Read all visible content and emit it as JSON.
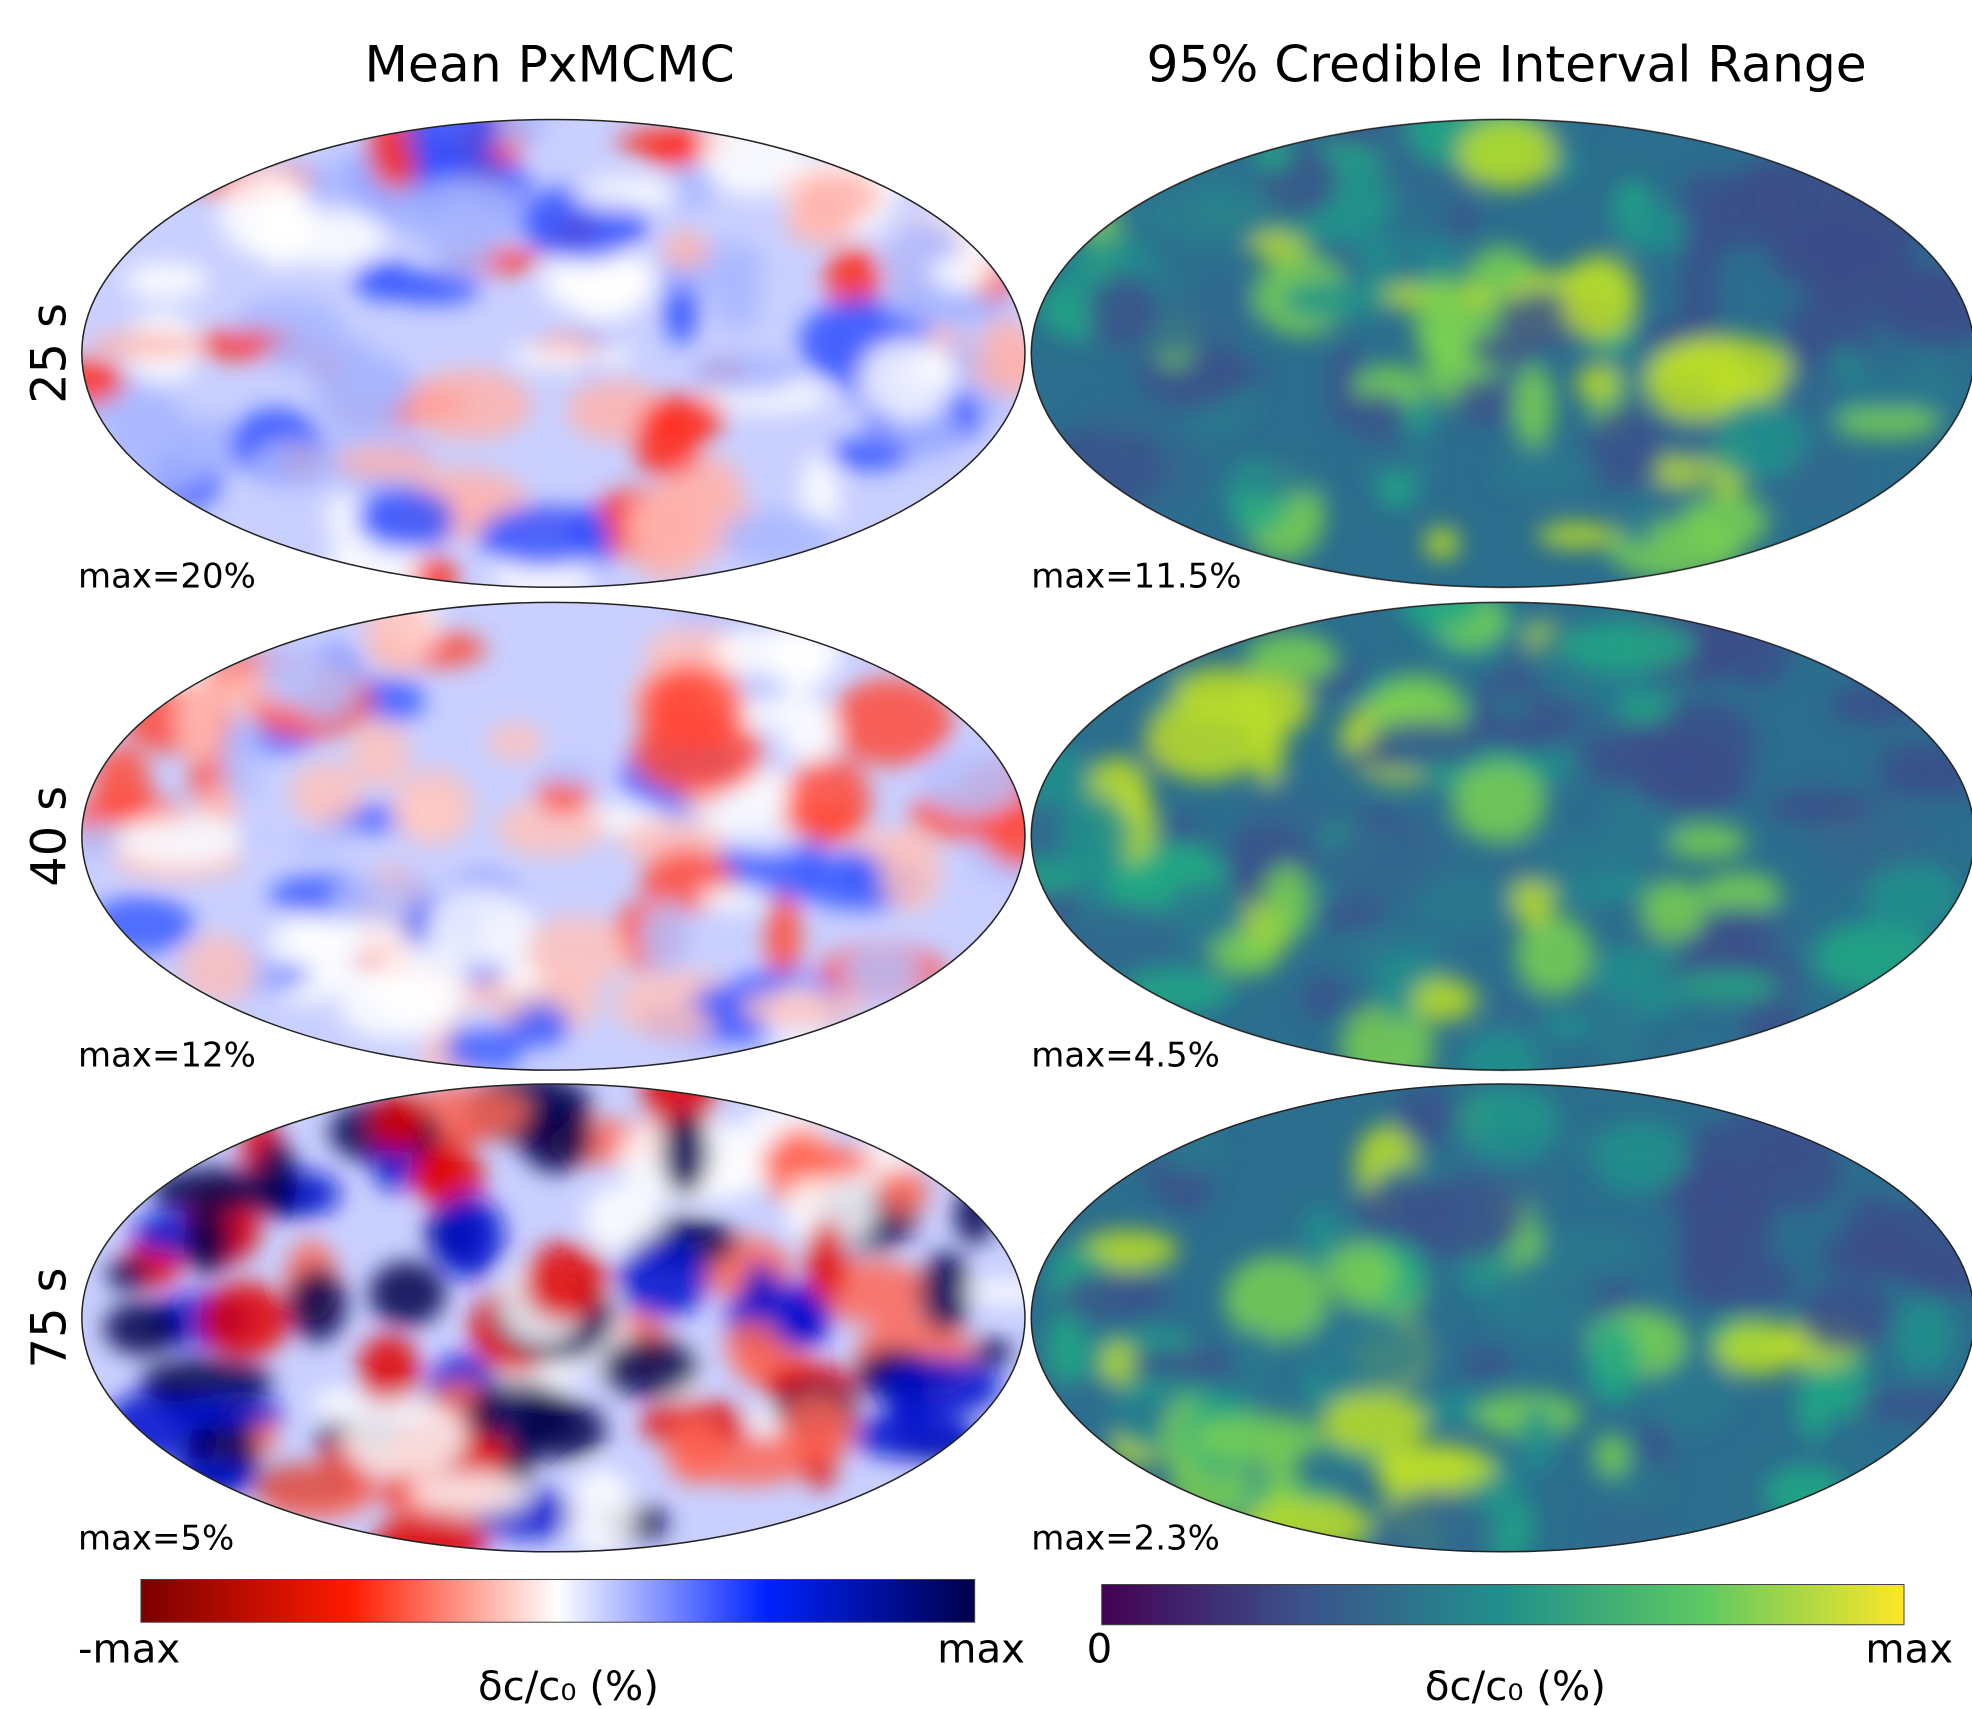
{
  "columns": [
    {
      "title": "Mean PxMCMC",
      "colorbar": {
        "min_label": "-max",
        "max_label": "max",
        "label": "δc/c₀ (%)"
      }
    },
    {
      "title": "95% Credible Interval Range",
      "colorbar": {
        "min_label": "0",
        "max_label": "max",
        "label": "δc/c₀ (%)"
      }
    }
  ],
  "rows": [
    {
      "label": "25 s",
      "max_labels": [
        "max=20%",
        "max=11.5%"
      ]
    },
    {
      "label": "40 s",
      "max_labels": [
        "max=12%",
        "max=4.5%"
      ]
    },
    {
      "label": "75 s",
      "max_labels": [
        "max=5%",
        "max=2.3%"
      ]
    }
  ]
}
